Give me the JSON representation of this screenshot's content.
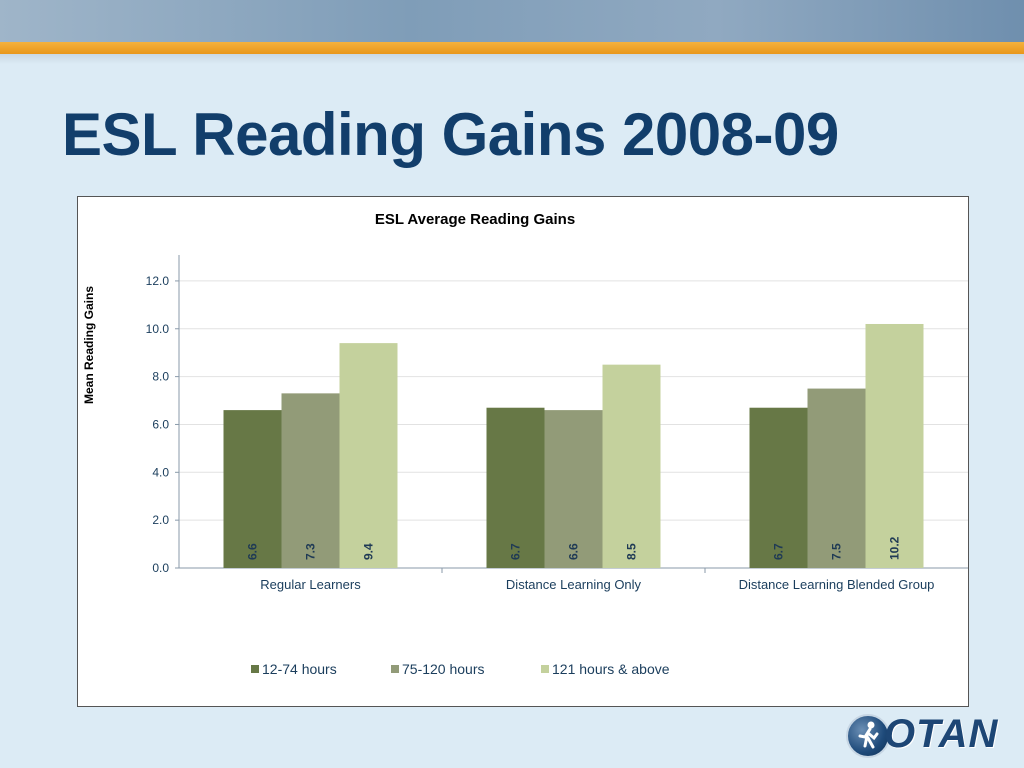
{
  "slide": {
    "title": "ESL Reading Gains 2008-09",
    "logo_text": "OTAN"
  },
  "colors": {
    "title": "#123e6b",
    "series": [
      "#677846",
      "#929b78",
      "#c4d19d"
    ]
  },
  "chart_data": {
    "type": "bar",
    "title": "ESL Average Reading Gains",
    "xlabel": "",
    "ylabel": "Mean Reading Gains",
    "ylim": [
      0,
      13
    ],
    "yticks": [
      0,
      2,
      4,
      6,
      8,
      10,
      12
    ],
    "ytick_labels": [
      "0.0",
      "2.0",
      "4.0",
      "6.0",
      "8.0",
      "10.0",
      "12.0"
    ],
    "grid": true,
    "legend": "bottom",
    "categories": [
      "Regular Learners",
      "Distance Learning Only",
      "Distance Learning Blended Group"
    ],
    "series": [
      {
        "name": "12-74 hours",
        "values": [
          6.6,
          6.7,
          6.7
        ],
        "labels": [
          "6.6",
          "6.7",
          "6.7"
        ]
      },
      {
        "name": "75-120 hours",
        "values": [
          7.3,
          6.6,
          7.5
        ],
        "labels": [
          "7.3",
          "6.6",
          "7.5"
        ]
      },
      {
        "name": "121 hours & above",
        "values": [
          9.4,
          8.5,
          10.2
        ],
        "labels": [
          "9.4",
          "8.5",
          "10.2"
        ]
      }
    ]
  }
}
